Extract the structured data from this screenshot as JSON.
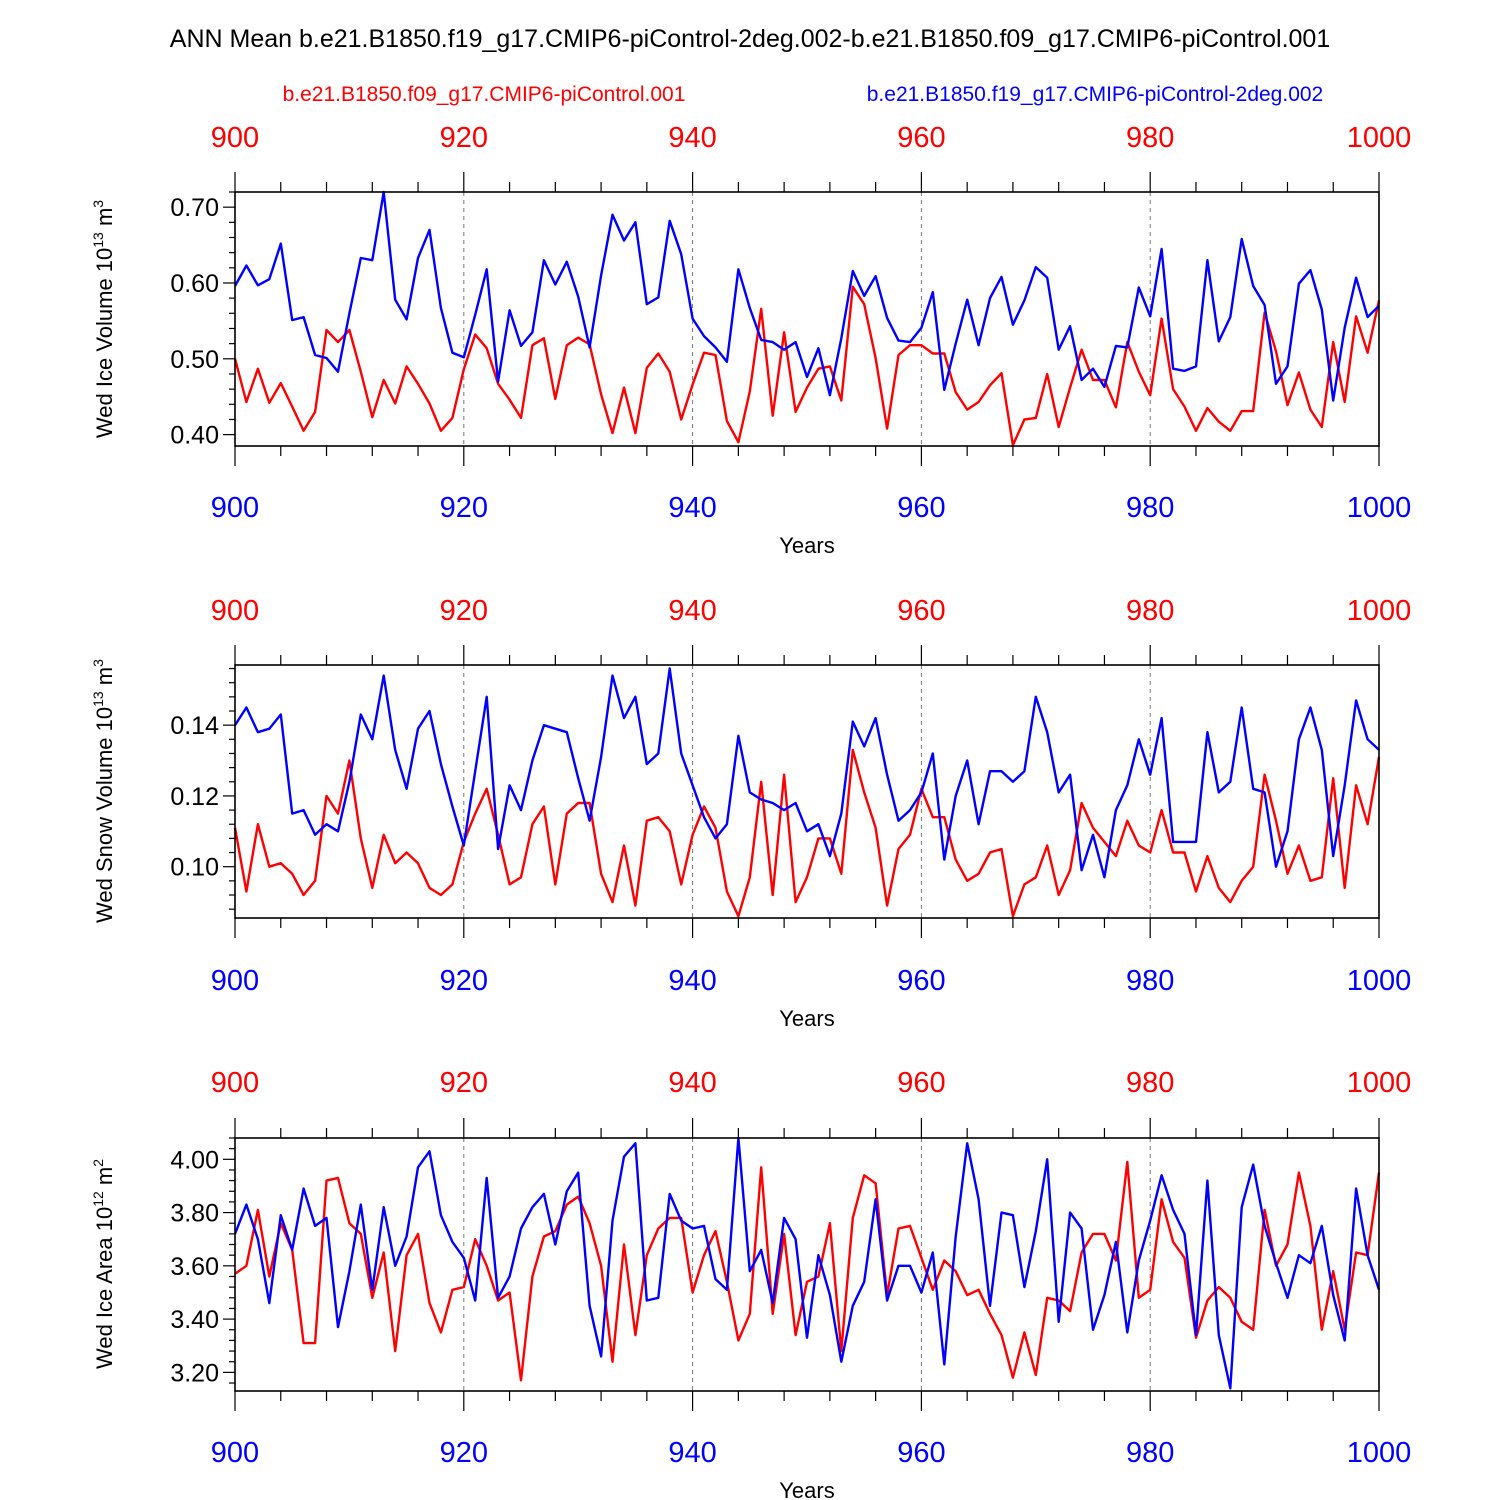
{
  "figure": {
    "title": "ANN Mean b.e21.B1850.f19_g17.CMIP6-piControl-2deg.002-b.e21.B1850.f09_g17.CMIP6-piControl.001",
    "legend": [
      {
        "label": "b.e21.B1850.f09_g17.CMIP6-piControl.001",
        "color": "#ff0000"
      },
      {
        "label": "b.e21.B1850.f19_g17.CMIP6-piControl-2deg.002",
        "color": "#0000ff"
      }
    ]
  },
  "chart_data": [
    {
      "type": "line",
      "title": "",
      "xlabel": "Years",
      "ylabel": "Wed Ice Volume",
      "ylabel_unit": "10",
      "ylabel_exp": "13",
      "ylabel_unit2": " m",
      "ylabel_exp2": "3",
      "xlim": [
        900,
        1000
      ],
      "ylim": [
        0.385,
        0.72
      ],
      "xticks": [
        900,
        920,
        940,
        960,
        980,
        1000
      ],
      "xtick_labels": [
        "900",
        "920",
        "940",
        "960",
        "980",
        "1000"
      ],
      "yticks": [
        0.4,
        0.5,
        0.6,
        0.7
      ],
      "ytick_labels": [
        "0.40",
        "0.50",
        "0.60",
        "0.70"
      ],
      "x_start": 900,
      "series": [
        {
          "name": "b.e21.B1850.f09_g17.CMIP6-piControl.001",
          "color": "#ff0000",
          "values": [
            0.5,
            0.443,
            0.487,
            0.442,
            0.468,
            0.437,
            0.405,
            0.43,
            0.538,
            0.522,
            0.538,
            0.483,
            0.423,
            0.472,
            0.441,
            0.49,
            0.467,
            0.441,
            0.405,
            0.422,
            0.486,
            0.532,
            0.514,
            0.467,
            0.446,
            0.422,
            0.518,
            0.527,
            0.447,
            0.518,
            0.528,
            0.519,
            0.453,
            0.402,
            0.462,
            0.402,
            0.488,
            0.507,
            0.483,
            0.42,
            0.466,
            0.508,
            0.505,
            0.418,
            0.39,
            0.457,
            0.566,
            0.425,
            0.535,
            0.43,
            0.462,
            0.487,
            0.49,
            0.445,
            0.595,
            0.572,
            0.501,
            0.408,
            0.505,
            0.518,
            0.518,
            0.507,
            0.507,
            0.456,
            0.433,
            0.443,
            0.465,
            0.481,
            0.386,
            0.42,
            0.422,
            0.48,
            0.41,
            0.462,
            0.512,
            0.472,
            0.472,
            0.436,
            0.522,
            0.483,
            0.452,
            0.553,
            0.46,
            0.437,
            0.405,
            0.435,
            0.417,
            0.405,
            0.431,
            0.431,
            0.561,
            0.51,
            0.439,
            0.482,
            0.433,
            0.41,
            0.522,
            0.443,
            0.556,
            0.508,
            0.577
          ]
        },
        {
          "name": "b.e21.B1850.f19_g17.CMIP6-piControl-2deg.002",
          "color": "#0000ff",
          "values": [
            0.596,
            0.623,
            0.597,
            0.605,
            0.652,
            0.551,
            0.555,
            0.505,
            0.501,
            0.483,
            0.56,
            0.633,
            0.63,
            0.72,
            0.578,
            0.552,
            0.633,
            0.67,
            0.567,
            0.508,
            0.502,
            0.558,
            0.618,
            0.47,
            0.564,
            0.517,
            0.535,
            0.63,
            0.598,
            0.628,
            0.582,
            0.515,
            0.61,
            0.69,
            0.656,
            0.68,
            0.572,
            0.581,
            0.682,
            0.638,
            0.553,
            0.53,
            0.515,
            0.496,
            0.618,
            0.567,
            0.525,
            0.522,
            0.512,
            0.522,
            0.476,
            0.514,
            0.452,
            0.527,
            0.616,
            0.583,
            0.609,
            0.554,
            0.524,
            0.522,
            0.541,
            0.588,
            0.459,
            0.52,
            0.578,
            0.518,
            0.58,
            0.608,
            0.545,
            0.577,
            0.621,
            0.607,
            0.512,
            0.543,
            0.472,
            0.487,
            0.463,
            0.517,
            0.515,
            0.594,
            0.556,
            0.645,
            0.487,
            0.484,
            0.49,
            0.63,
            0.523,
            0.555,
            0.658,
            0.596,
            0.571,
            0.467,
            0.49,
            0.599,
            0.617,
            0.565,
            0.445,
            0.541,
            0.607,
            0.555,
            0.57
          ]
        }
      ]
    },
    {
      "type": "line",
      "title": "",
      "xlabel": "Years",
      "ylabel": "Wed Snow Volume",
      "ylabel_unit": "10",
      "ylabel_exp": "13",
      "ylabel_unit2": " m",
      "ylabel_exp2": "3",
      "xlim": [
        900,
        1000
      ],
      "ylim": [
        0.0855,
        0.157
      ],
      "xticks": [
        900,
        920,
        940,
        960,
        980,
        1000
      ],
      "xtick_labels": [
        "900",
        "920",
        "940",
        "960",
        "980",
        "1000"
      ],
      "yticks": [
        0.1,
        0.12,
        0.14
      ],
      "ytick_labels": [
        "0.10",
        "0.12",
        "0.14"
      ],
      "x_start": 900,
      "series": [
        {
          "name": "b.e21.B1850.f09_g17.CMIP6-piControl.001",
          "color": "#ff0000",
          "values": [
            0.111,
            0.093,
            0.112,
            0.1,
            0.101,
            0.098,
            0.092,
            0.096,
            0.12,
            0.115,
            0.13,
            0.108,
            0.094,
            0.109,
            0.101,
            0.104,
            0.101,
            0.094,
            0.092,
            0.095,
            0.107,
            0.115,
            0.122,
            0.109,
            0.095,
            0.097,
            0.112,
            0.117,
            0.095,
            0.115,
            0.118,
            0.118,
            0.098,
            0.09,
            0.106,
            0.089,
            0.113,
            0.114,
            0.11,
            0.095,
            0.109,
            0.117,
            0.111,
            0.093,
            0.086,
            0.097,
            0.124,
            0.092,
            0.126,
            0.09,
            0.097,
            0.108,
            0.108,
            0.098,
            0.133,
            0.121,
            0.111,
            0.089,
            0.105,
            0.109,
            0.122,
            0.114,
            0.114,
            0.102,
            0.096,
            0.098,
            0.104,
            0.105,
            0.086,
            0.095,
            0.097,
            0.106,
            0.092,
            0.099,
            0.118,
            0.111,
            0.107,
            0.103,
            0.113,
            0.106,
            0.104,
            0.116,
            0.104,
            0.104,
            0.093,
            0.103,
            0.094,
            0.09,
            0.096,
            0.1,
            0.126,
            0.113,
            0.098,
            0.106,
            0.096,
            0.097,
            0.125,
            0.094,
            0.123,
            0.112,
            0.131
          ]
        },
        {
          "name": "b.e21.B1850.f19_g17.CMIP6-piControl-2deg.002",
          "color": "#0000ff",
          "values": [
            0.14,
            0.145,
            0.138,
            0.139,
            0.143,
            0.115,
            0.116,
            0.109,
            0.112,
            0.11,
            0.124,
            0.143,
            0.136,
            0.154,
            0.133,
            0.122,
            0.139,
            0.144,
            0.129,
            0.117,
            0.106,
            0.127,
            0.148,
            0.105,
            0.123,
            0.116,
            0.13,
            0.14,
            0.139,
            0.138,
            0.125,
            0.113,
            0.131,
            0.154,
            0.142,
            0.148,
            0.129,
            0.132,
            0.156,
            0.132,
            0.123,
            0.114,
            0.108,
            0.112,
            0.137,
            0.121,
            0.119,
            0.118,
            0.116,
            0.118,
            0.11,
            0.112,
            0.103,
            0.115,
            0.141,
            0.134,
            0.142,
            0.126,
            0.113,
            0.116,
            0.121,
            0.132,
            0.102,
            0.12,
            0.13,
            0.112,
            0.127,
            0.127,
            0.124,
            0.127,
            0.148,
            0.138,
            0.121,
            0.126,
            0.099,
            0.109,
            0.097,
            0.116,
            0.123,
            0.136,
            0.126,
            0.142,
            0.107,
            0.107,
            0.107,
            0.138,
            0.121,
            0.124,
            0.145,
            0.122,
            0.121,
            0.1,
            0.11,
            0.136,
            0.145,
            0.133,
            0.103,
            0.123,
            0.147,
            0.136,
            0.133
          ]
        }
      ]
    },
    {
      "type": "line",
      "title": "",
      "xlabel": "Years",
      "ylabel": "Wed Ice Area",
      "ylabel_unit": "10",
      "ylabel_exp": "12",
      "ylabel_unit2": " m",
      "ylabel_exp2": "2",
      "xlim": [
        900,
        1000
      ],
      "ylim": [
        3.13,
        4.08
      ],
      "xticks": [
        900,
        920,
        940,
        960,
        980,
        1000
      ],
      "xtick_labels": [
        "900",
        "920",
        "940",
        "960",
        "980",
        "1000"
      ],
      "yticks": [
        3.2,
        3.4,
        3.6,
        3.8,
        4.0
      ],
      "ytick_labels": [
        "3.20",
        "3.40",
        "3.60",
        "3.80",
        "4.00"
      ],
      "x_start": 900,
      "series": [
        {
          "name": "b.e21.B1850.f09_g17.CMIP6-piControl.001",
          "color": "#ff0000",
          "values": [
            3.57,
            3.6,
            3.81,
            3.56,
            3.76,
            3.66,
            3.31,
            3.31,
            3.92,
            3.93,
            3.76,
            3.72,
            3.48,
            3.65,
            3.28,
            3.64,
            3.72,
            3.46,
            3.35,
            3.51,
            3.52,
            3.7,
            3.6,
            3.47,
            3.5,
            3.17,
            3.56,
            3.71,
            3.73,
            3.83,
            3.86,
            3.76,
            3.6,
            3.24,
            3.68,
            3.34,
            3.64,
            3.74,
            3.78,
            3.78,
            3.5,
            3.64,
            3.73,
            3.54,
            3.32,
            3.42,
            3.97,
            3.42,
            3.72,
            3.34,
            3.54,
            3.56,
            3.76,
            3.28,
            3.78,
            3.94,
            3.91,
            3.49,
            3.74,
            3.75,
            3.63,
            3.51,
            3.62,
            3.58,
            3.49,
            3.51,
            3.42,
            3.34,
            3.18,
            3.35,
            3.19,
            3.48,
            3.47,
            3.43,
            3.65,
            3.72,
            3.72,
            3.62,
            3.99,
            3.48,
            3.51,
            3.85,
            3.69,
            3.63,
            3.33,
            3.47,
            3.52,
            3.48,
            3.39,
            3.36,
            3.81,
            3.6,
            3.68,
            3.95,
            3.75,
            3.36,
            3.58,
            3.36,
            3.65,
            3.64,
            3.95
          ]
        },
        {
          "name": "b.e21.B1850.f19_g17.CMIP6-piControl-2deg.002",
          "color": "#0000ff",
          "values": [
            3.72,
            3.83,
            3.7,
            3.46,
            3.79,
            3.66,
            3.89,
            3.75,
            3.78,
            3.37,
            3.58,
            3.83,
            3.51,
            3.82,
            3.6,
            3.71,
            3.97,
            4.03,
            3.79,
            3.69,
            3.63,
            3.47,
            3.93,
            3.48,
            3.56,
            3.74,
            3.82,
            3.87,
            3.68,
            3.88,
            3.95,
            3.45,
            3.26,
            3.77,
            4.01,
            4.06,
            3.47,
            3.48,
            3.87,
            3.77,
            3.74,
            3.75,
            3.55,
            3.51,
            4.08,
            3.58,
            3.66,
            3.46,
            3.78,
            3.7,
            3.33,
            3.64,
            3.49,
            3.24,
            3.45,
            3.54,
            3.85,
            3.47,
            3.6,
            3.6,
            3.5,
            3.65,
            3.23,
            3.71,
            4.06,
            3.85,
            3.45,
            3.8,
            3.79,
            3.52,
            3.73,
            4.0,
            3.39,
            3.8,
            3.74,
            3.36,
            3.49,
            3.69,
            3.35,
            3.62,
            3.77,
            3.94,
            3.81,
            3.72,
            3.34,
            3.92,
            3.34,
            3.14,
            3.82,
            3.98,
            3.75,
            3.61,
            3.48,
            3.64,
            3.61,
            3.75,
            3.49,
            3.32,
            3.89,
            3.64,
            3.51
          ]
        }
      ]
    }
  ]
}
